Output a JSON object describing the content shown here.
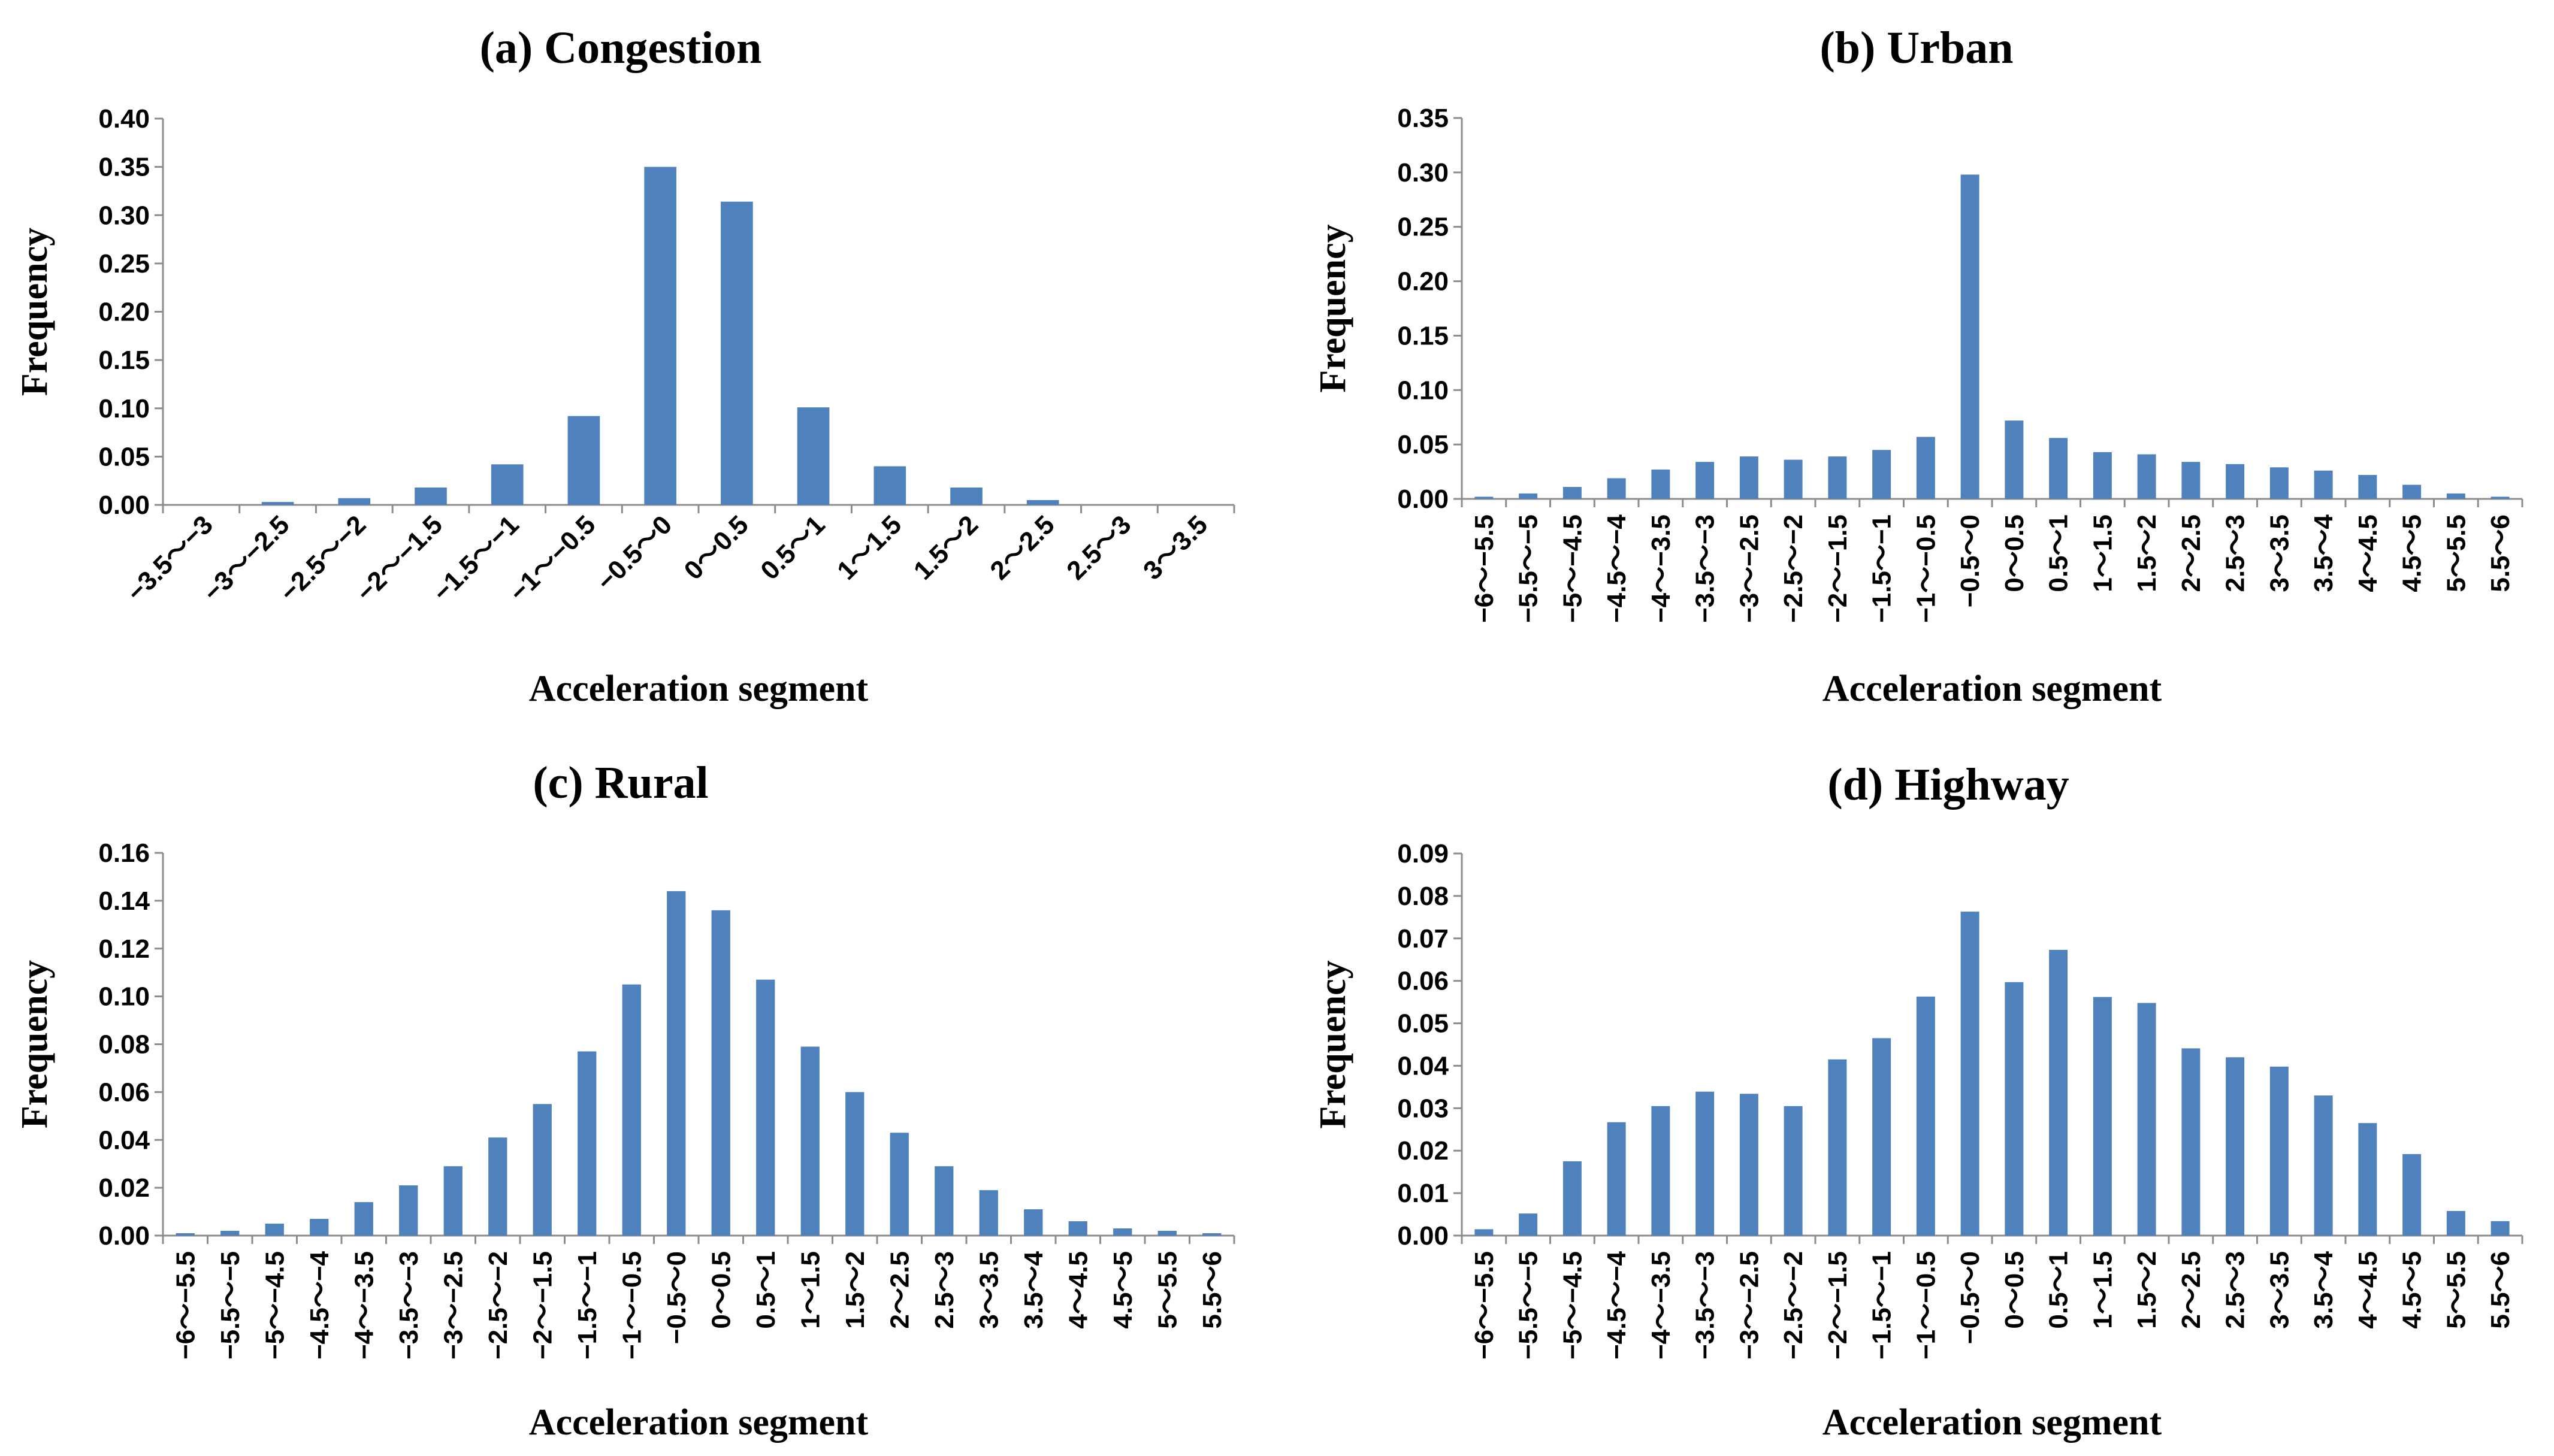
{
  "chart_data": [
    {
      "type": "bar",
      "title": "(a) Congestion",
      "xlabel": "Acceleration segment",
      "ylabel": "Frequency",
      "ylim": [
        0,
        0.4
      ],
      "yticks": [
        "0.00",
        "0.05",
        "0.10",
        "0.15",
        "0.20",
        "0.25",
        "0.30",
        "0.35",
        "0.40"
      ],
      "categories": [
        "−3.5～−3",
        "−3～−2.5",
        "−2.5～−2",
        "−2～−1.5",
        "−1.5～−1",
        "−1～−0.5",
        "−0.5～0",
        "0～0.5",
        "0.5～1",
        "1～1.5",
        "1.5～2",
        "2～2.5",
        "2.5～3",
        "3～3.5"
      ],
      "values": [
        0.0,
        0.003,
        0.007,
        0.018,
        0.042,
        0.092,
        0.35,
        0.314,
        0.101,
        0.04,
        0.018,
        0.005,
        0.0,
        0.0
      ],
      "grid": false,
      "tick_rotation": 45
    },
    {
      "type": "bar",
      "title": "(b) Urban",
      "xlabel": "Acceleration segment",
      "ylabel": "Frequency",
      "ylim": [
        0,
        0.35
      ],
      "yticks": [
        "0.00",
        "0.05",
        "0.10",
        "0.15",
        "0.20",
        "0.25",
        "0.30",
        "0.35"
      ],
      "categories": [
        "−6～−5.5",
        "−5.5～−5",
        "−5～−4.5",
        "−4.5～−4",
        "−4～−3.5",
        "−3.5～−3",
        "−3～−2.5",
        "−2.5～−2",
        "−2～−1.5",
        "−1.5～−1",
        "−1～−0.5",
        "−0.5～0",
        "0～0.5",
        "0.5～1",
        "1～1.5",
        "1.5～2",
        "2～2.5",
        "2.5～3",
        "3～3.5",
        "3.5～4",
        "4～4.5",
        "4.5～5",
        "5～5.5",
        "5.5～6"
      ],
      "values": [
        0.002,
        0.005,
        0.011,
        0.019,
        0.027,
        0.034,
        0.039,
        0.036,
        0.039,
        0.045,
        0.057,
        0.298,
        0.072,
        0.056,
        0.043,
        0.041,
        0.034,
        0.032,
        0.029,
        0.026,
        0.022,
        0.013,
        0.005,
        0.002
      ],
      "grid": false,
      "tick_rotation": 90
    },
    {
      "type": "bar",
      "title": "(c) Rural",
      "xlabel": "Acceleration segment",
      "ylabel": "Frequency",
      "ylim": [
        0,
        0.16
      ],
      "yticks": [
        "0.00",
        "0.02",
        "0.04",
        "0.06",
        "0.08",
        "0.10",
        "0.12",
        "0.14",
        "0.16"
      ],
      "categories": [
        "−6～−5.5",
        "−5.5～−5",
        "−5～−4.5",
        "−4.5～−4",
        "−4～−3.5",
        "−3.5～−3",
        "−3～−2.5",
        "−2.5～−2",
        "−2～−1.5",
        "−1.5～−1",
        "−1～−0.5",
        "−0.5～0",
        "0～0.5",
        "0.5～1",
        "1～1.5",
        "1.5～2",
        "2～2.5",
        "2.5～3",
        "3～3.5",
        "3.5～4",
        "4～4.5",
        "4.5～5",
        "5～5.5",
        "5.5～6"
      ],
      "values": [
        0.001,
        0.002,
        0.005,
        0.007,
        0.014,
        0.021,
        0.029,
        0.041,
        0.055,
        0.077,
        0.105,
        0.144,
        0.136,
        0.107,
        0.079,
        0.06,
        0.043,
        0.029,
        0.019,
        0.011,
        0.006,
        0.003,
        0.002,
        0.001
      ],
      "grid": false,
      "tick_rotation": 90
    },
    {
      "type": "bar",
      "title": "(d) Highway",
      "xlabel": "Acceleration segment",
      "ylabel": "Frequency",
      "ylim": [
        0,
        0.09
      ],
      "yticks": [
        "0.00",
        "0.01",
        "0.02",
        "0.03",
        "0.04",
        "0.05",
        "0.06",
        "0.07",
        "0.08",
        "0.09"
      ],
      "categories": [
        "−6～−5.5",
        "−5.5～−5",
        "−5～−4.5",
        "−4.5～−4",
        "−4～−3.5",
        "−3.5～−3",
        "−3～−2.5",
        "−2.5～−2",
        "−2～−1.5",
        "−1.5～−1",
        "−1～−0.5",
        "−0.5～0",
        "0～0.5",
        "0.5～1",
        "1～1.5",
        "1.5～2",
        "2～2.5",
        "2.5～3",
        "3～3.5",
        "3.5～4",
        "4～4.5",
        "4.5～5",
        "5～5.5",
        "5.5～6"
      ],
      "values": [
        0.0015,
        0.0052,
        0.0175,
        0.0267,
        0.0305,
        0.0339,
        0.0334,
        0.0305,
        0.0415,
        0.0465,
        0.0563,
        0.0763,
        0.0597,
        0.0673,
        0.0562,
        0.0548,
        0.0441,
        0.042,
        0.0398,
        0.033,
        0.0265,
        0.0192,
        0.0058,
        0.0034
      ],
      "grid": false,
      "tick_rotation": 90
    }
  ]
}
